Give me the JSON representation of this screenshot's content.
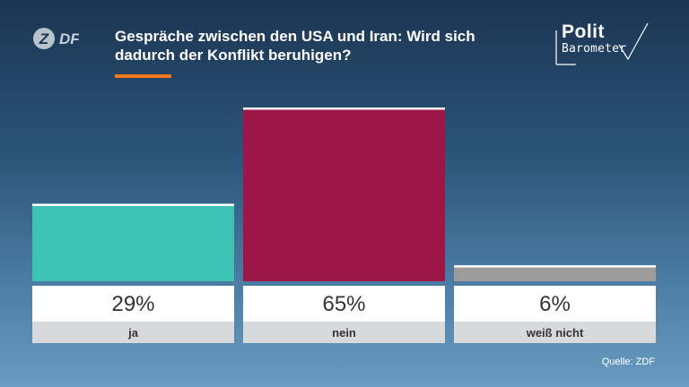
{
  "header": {
    "logo_text": "ZDF",
    "title": "Gespräche zwischen den USA und Iran: Wird sich dadurch der Konflikt beruhigen?",
    "accent_color": "#f07a1c"
  },
  "brand": {
    "line1": "Polit",
    "line2": "Barometer"
  },
  "source": "Quelle: ZDF",
  "chart_data": {
    "type": "bar",
    "title": "Gespräche zwischen den USA und Iran: Wird sich dadurch der Konflikt beruhigen?",
    "categories": [
      "ja",
      "nein",
      "weiß nicht"
    ],
    "values": [
      29,
      65,
      6
    ],
    "value_labels": [
      "29%",
      "65%",
      "6%"
    ],
    "colors": [
      "#3ec2b3",
      "#9c1747",
      "#9c9c9c"
    ],
    "ylim": [
      0,
      65
    ],
    "grid": false,
    "legend": "none"
  }
}
